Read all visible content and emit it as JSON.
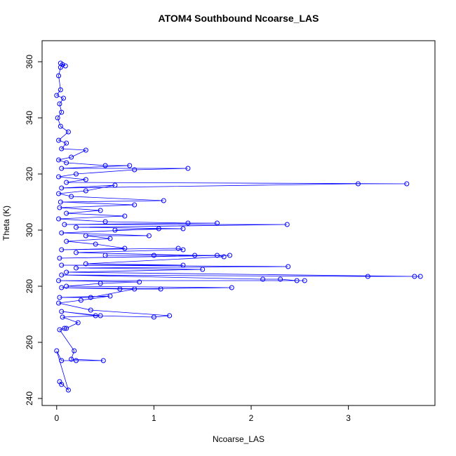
{
  "chart_data": {
    "type": "line",
    "title": "ATOM4 Southbound Ncoarse_LAS",
    "x_label": "Ncoarse_LAS",
    "y_label": "Theta (K)",
    "color": "#0000ff",
    "markers": true,
    "grid": false,
    "xlim": [
      -0.15,
      3.89
    ],
    "ylim": [
      237.5,
      367.5
    ],
    "xticks": [
      0,
      1,
      2,
      3
    ],
    "yticks": [
      240,
      260,
      280,
      300,
      320,
      340,
      360
    ],
    "x": [
      0.05,
      0.03,
      0.12,
      0.0,
      0.05,
      0.2,
      0.48,
      0.15,
      0.18,
      0.03,
      0.08,
      0.1,
      0.22,
      0.06,
      0.45,
      0.05,
      0.4,
      1.0,
      1.16,
      0.35,
      0.02,
      0.25,
      0.55,
      0.03,
      0.35,
      0.8,
      1.07,
      0.05,
      0.65,
      1.8,
      0.1,
      0.45,
      0.85,
      0.02,
      2.55,
      2.47,
      2.3,
      2.12,
      0.05,
      3.2,
      3.74,
      3.68,
      0.1,
      1.5,
      0.2,
      2.38,
      0.05,
      1.3,
      0.3,
      1.72,
      1.65,
      0.03,
      1.78,
      0.5,
      1.0,
      1.42,
      0.2,
      1.3,
      1.25,
      0.05,
      0.7,
      0.4,
      0.1,
      0.55,
      0.3,
      0.95,
      0.05,
      1.05,
      0.6,
      1.3,
      0.2,
      2.37,
      0.08,
      1.65,
      1.35,
      0.5,
      0.02,
      0.7,
      0.1,
      0.45,
      0.03,
      0.8,
      0.04,
      1.1,
      0.15,
      0.02,
      0.3,
      0.6,
      0.05,
      3.1,
      3.6,
      0.1,
      0.3,
      0.02,
      0.2,
      0.8,
      1.35,
      0.05,
      0.75,
      0.5,
      0.1,
      0.02,
      0.15,
      0.3,
      0.05,
      0.1,
      0.02,
      0.12,
      0.04,
      0.01,
      0.05,
      0.03,
      0.07,
      0.0,
      0.04,
      0.02,
      0.04,
      0.06,
      0.09,
      0.04
    ],
    "values": [
      245,
      246,
      243,
      257,
      253.5,
      253.5,
      253.5,
      254,
      257,
      264.5,
      265,
      265,
      267,
      269,
      269.5,
      271,
      269.5,
      269,
      269.5,
      271.5,
      274,
      275,
      276.5,
      276,
      276,
      279,
      279,
      279.5,
      279,
      279.5,
      280,
      281,
      281.5,
      282,
      282,
      282,
      282.5,
      282.5,
      284,
      283.5,
      283.5,
      283.5,
      285,
      286,
      286.5,
      287,
      287.5,
      287.5,
      288,
      290.5,
      291,
      290,
      291,
      291,
      291,
      291,
      292,
      293,
      293.5,
      293,
      293.5,
      295,
      296,
      297,
      298,
      298,
      299,
      300.5,
      300,
      300.5,
      301,
      302,
      302,
      302.5,
      302.5,
      303,
      304,
      305,
      306,
      307,
      308,
      309,
      310,
      310.5,
      312,
      313,
      314,
      316,
      315,
      316.5,
      316.5,
      317,
      318,
      319,
      320,
      321.5,
      322,
      322,
      323,
      323,
      324,
      325,
      326,
      328.5,
      329,
      331,
      332,
      335,
      337,
      340,
      342,
      345,
      347,
      348,
      350,
      355,
      358,
      359,
      358.5,
      359.5
    ]
  }
}
